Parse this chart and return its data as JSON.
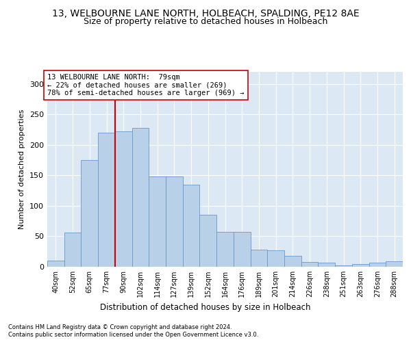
{
  "title": "13, WELBOURNE LANE NORTH, HOLBEACH, SPALDING, PE12 8AE",
  "subtitle": "Size of property relative to detached houses in Holbeach",
  "xlabel": "Distribution of detached houses by size in Holbeach",
  "ylabel": "Number of detached properties",
  "categories": [
    "40sqm",
    "52sqm",
    "65sqm",
    "77sqm",
    "90sqm",
    "102sqm",
    "114sqm",
    "127sqm",
    "139sqm",
    "152sqm",
    "164sqm",
    "176sqm",
    "189sqm",
    "201sqm",
    "214sqm",
    "226sqm",
    "238sqm",
    "251sqm",
    "263sqm",
    "276sqm",
    "288sqm"
  ],
  "values": [
    10,
    56,
    175,
    220,
    222,
    228,
    148,
    148,
    135,
    85,
    57,
    57,
    28,
    27,
    18,
    8,
    7,
    2,
    5,
    7,
    9
  ],
  "bar_color": "#b8d0e8",
  "bar_edge_color": "#6699cc",
  "vline_color": "#cc0000",
  "annotation_text": "13 WELBOURNE LANE NORTH:  79sqm\n← 22% of detached houses are smaller (269)\n78% of semi-detached houses are larger (969) →",
  "annotation_box_color": "#ffffff",
  "annotation_box_edge": "#cc0000",
  "ylim": [
    0,
    320
  ],
  "yticks": [
    0,
    50,
    100,
    150,
    200,
    250,
    300
  ],
  "footer1": "Contains HM Land Registry data © Crown copyright and database right 2024.",
  "footer2": "Contains public sector information licensed under the Open Government Licence v3.0.",
  "background_color": "#dce9f5",
  "fig_background": "#ffffff",
  "title_fontsize": 10,
  "subtitle_fontsize": 9,
  "xlabel_fontsize": 8.5,
  "ylabel_fontsize": 8
}
